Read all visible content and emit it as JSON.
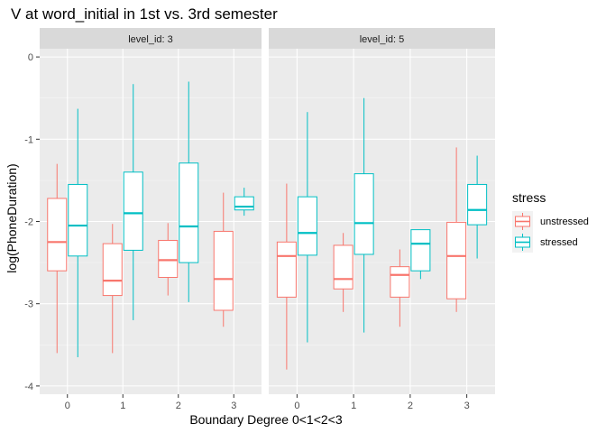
{
  "chart_data": {
    "type": "boxplot",
    "title": "V at word_initial in 1st vs. 3rd semester",
    "xlabel": "Boundary Degree 0<1<2<3",
    "ylabel": "log(PhoneDuration)",
    "x_categories": [
      "0",
      "1",
      "2",
      "3"
    ],
    "y_ticks": [
      0,
      -1,
      -2,
      -3,
      -4
    ],
    "ylim": [
      -4.1,
      0.1
    ],
    "grid": true,
    "legend": {
      "title": "stress",
      "placement": "right",
      "entries": [
        {
          "name": "unstressed",
          "color": "#F8766D"
        },
        {
          "name": "stressed",
          "color": "#00BFC4"
        }
      ]
    },
    "facets": [
      {
        "strip": "level_id: 3",
        "boxes": [
          {
            "x": "0",
            "stress": "unstressed",
            "min": -3.6,
            "q1": -2.6,
            "median": -2.25,
            "q3": -1.72,
            "max": -1.3
          },
          {
            "x": "0",
            "stress": "stressed",
            "min": -3.65,
            "q1": -2.42,
            "median": -2.05,
            "q3": -1.55,
            "max": -0.63
          },
          {
            "x": "1",
            "stress": "unstressed",
            "min": -3.6,
            "q1": -2.9,
            "median": -2.72,
            "q3": -2.27,
            "max": -2.03
          },
          {
            "x": "1",
            "stress": "stressed",
            "min": -3.2,
            "q1": -2.35,
            "median": -1.9,
            "q3": -1.4,
            "max": -0.33
          },
          {
            "x": "2",
            "stress": "unstressed",
            "min": -2.9,
            "q1": -2.68,
            "median": -2.47,
            "q3": -2.23,
            "max": -2.02
          },
          {
            "x": "2",
            "stress": "stressed",
            "min": -2.98,
            "q1": -2.5,
            "median": -2.06,
            "q3": -1.29,
            "max": -0.3
          },
          {
            "x": "3",
            "stress": "unstressed",
            "min": -3.28,
            "q1": -3.08,
            "median": -2.7,
            "q3": -2.12,
            "max": -1.65
          },
          {
            "x": "3",
            "stress": "stressed",
            "min": -1.93,
            "q1": -1.86,
            "median": -1.82,
            "q3": -1.7,
            "max": -1.59
          }
        ]
      },
      {
        "strip": "level_id: 5",
        "boxes": [
          {
            "x": "0",
            "stress": "unstressed",
            "min": -3.8,
            "q1": -2.92,
            "median": -2.42,
            "q3": -2.25,
            "max": -1.54
          },
          {
            "x": "0",
            "stress": "stressed",
            "min": -3.47,
            "q1": -2.41,
            "median": -2.14,
            "q3": -1.7,
            "max": -0.67
          },
          {
            "x": "1",
            "stress": "unstressed",
            "min": -3.1,
            "q1": -2.82,
            "median": -2.7,
            "q3": -2.29,
            "max": -2.14
          },
          {
            "x": "1",
            "stress": "stressed",
            "min": -3.35,
            "q1": -2.4,
            "median": -2.02,
            "q3": -1.42,
            "max": -0.5
          },
          {
            "x": "2",
            "stress": "unstressed",
            "min": -3.28,
            "q1": -2.92,
            "median": -2.65,
            "q3": -2.55,
            "max": -2.34
          },
          {
            "x": "2",
            "stress": "stressed",
            "min": -2.7,
            "q1": -2.6,
            "median": -2.27,
            "q3": -2.1,
            "max": -2.1
          },
          {
            "x": "3",
            "stress": "unstressed",
            "min": -3.1,
            "q1": -2.94,
            "median": -2.42,
            "q3": -2.01,
            "max": -1.1
          },
          {
            "x": "3",
            "stress": "stressed",
            "min": -2.45,
            "q1": -2.04,
            "median": -1.86,
            "q3": -1.55,
            "max": -1.2
          }
        ]
      }
    ]
  }
}
